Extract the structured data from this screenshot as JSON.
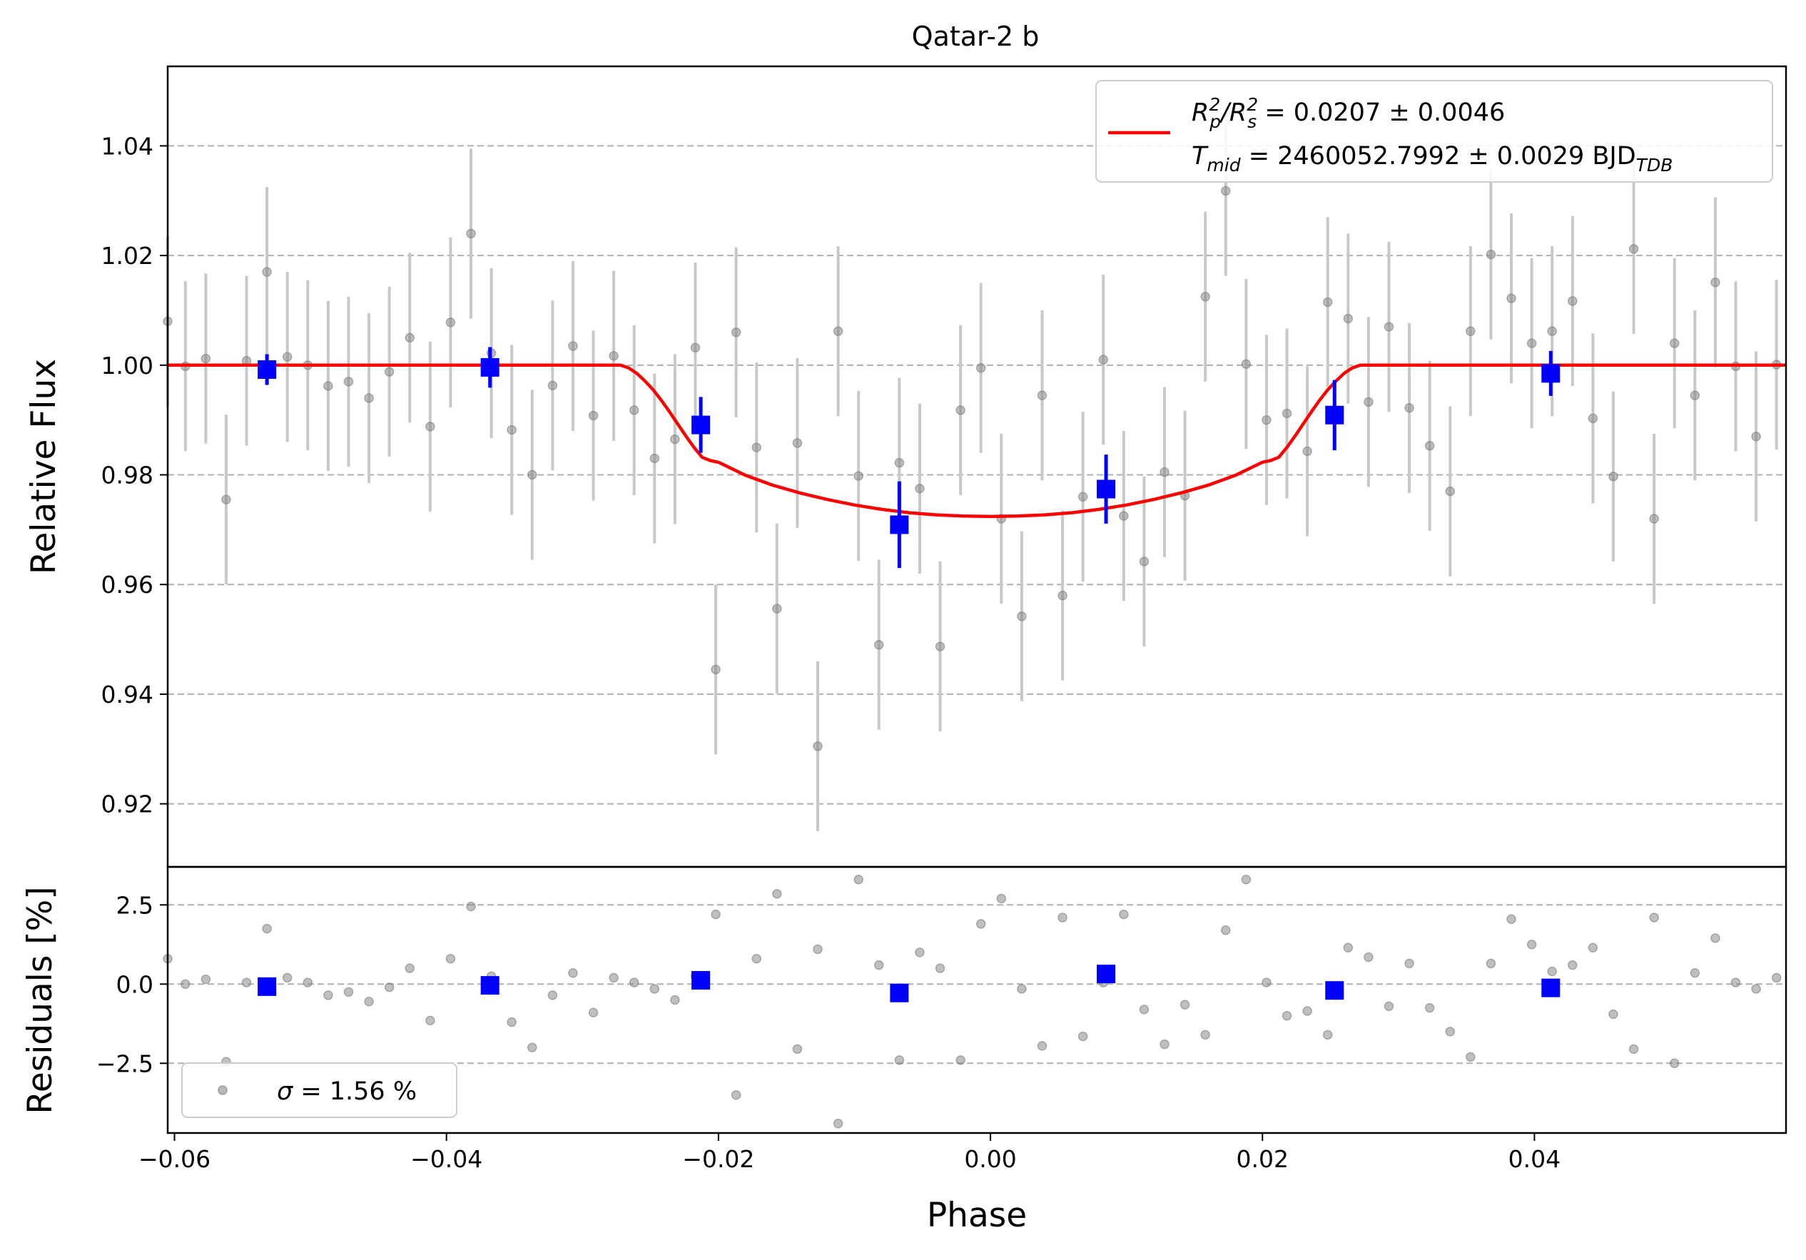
{
  "chart_data": {
    "type": "scatter",
    "title": "Qatar-2 b",
    "colors": {
      "raw": "#808080",
      "raw_errorbar": "#c8c8c8",
      "binned": "#0000ff",
      "model": "#ff0000",
      "grid": "#b0b0b0"
    },
    "x_axis": {
      "label": "Phase",
      "lim": [
        -0.0605,
        0.0585
      ],
      "ticks": [
        -0.06,
        -0.04,
        -0.02,
        0.0,
        0.02,
        0.04
      ],
      "tick_labels": [
        "−0.06",
        "−0.04",
        "−0.02",
        "0.00",
        "0.02",
        "0.04"
      ]
    },
    "main_panel": {
      "ylabel": "Relative Flux",
      "ylim": [
        0.9085,
        1.0545
      ],
      "yticks": [
        0.92,
        0.94,
        0.96,
        0.98,
        1.0,
        1.02,
        1.04
      ],
      "ytick_labels": [
        "0.92",
        "0.94",
        "0.96",
        "0.98",
        "1.00",
        "1.02",
        "1.04"
      ],
      "grid": "horizontal-dashed",
      "legend": {
        "placement": "top-right",
        "line1": {
          "main": "R",
          "sub1": "p",
          "sup1": "2",
          "mid": "/R",
          "sub2": "s",
          "sup2": "2",
          "rest": " = 0.0207 ± 0.0046"
        },
        "line2": {
          "main": "T",
          "sub1": "mid",
          "rest": " = 2460052.7992 ± 0.0029 BJD",
          "sub2": "TDB"
        }
      },
      "model_curve": {
        "x": [
          -0.0605,
          -0.0272,
          -0.0266,
          -0.026,
          -0.0254,
          -0.0248,
          -0.0242,
          -0.0236,
          -0.023,
          -0.0224,
          -0.0218,
          -0.0212,
          -0.0206,
          -0.02,
          -0.018,
          -0.016,
          -0.014,
          -0.012,
          -0.01,
          -0.008,
          -0.006,
          -0.004,
          -0.002,
          0.0,
          0.002,
          0.004,
          0.006,
          0.008,
          0.01,
          0.012,
          0.014,
          0.016,
          0.018,
          0.02,
          0.0206,
          0.0212,
          0.0218,
          0.0224,
          0.023,
          0.0236,
          0.0242,
          0.0248,
          0.0254,
          0.026,
          0.0266,
          0.0272,
          0.0585
        ],
        "y": [
          1.0,
          1.0,
          0.9995,
          0.9985,
          0.9971,
          0.9955,
          0.9936,
          0.9915,
          0.9893,
          0.9871,
          0.985,
          0.9832,
          0.9826,
          0.9823,
          0.9799,
          0.9781,
          0.9767,
          0.9755,
          0.9745,
          0.9737,
          0.9731,
          0.9727,
          0.9725,
          0.9724,
          0.9725,
          0.9727,
          0.9731,
          0.9737,
          0.9745,
          0.9755,
          0.9767,
          0.9781,
          0.9799,
          0.9823,
          0.9826,
          0.9832,
          0.985,
          0.9871,
          0.9893,
          0.9915,
          0.9936,
          0.9955,
          0.9971,
          0.9985,
          0.9995,
          1.0,
          1.0
        ]
      },
      "raw_points": {
        "x": [
          -0.0605,
          -0.0592,
          -0.0577,
          -0.0562,
          -0.0547,
          -0.0532,
          -0.0517,
          -0.0502,
          -0.0487,
          -0.0472,
          -0.0457,
          -0.0442,
          -0.0427,
          -0.0412,
          -0.0397,
          -0.0382,
          -0.0367,
          -0.0352,
          -0.0337,
          -0.0322,
          -0.0307,
          -0.0292,
          -0.0277,
          -0.0262,
          -0.0247,
          -0.0232,
          -0.0217,
          -0.0202,
          -0.0187,
          -0.0172,
          -0.0157,
          -0.0142,
          -0.0127,
          -0.0112,
          -0.0097,
          -0.0082,
          -0.0067,
          -0.0052,
          -0.0037,
          -0.0022,
          -0.0007,
          0.0008,
          0.0023,
          0.0038,
          0.0053,
          0.0068,
          0.0083,
          0.0098,
          0.0113,
          0.0128,
          0.0143,
          0.0158,
          0.0173,
          0.0188,
          0.0203,
          0.0218,
          0.0233,
          0.0248,
          0.0263,
          0.0278,
          0.0293,
          0.0308,
          0.0323,
          0.0338,
          0.0353,
          0.0368,
          0.0383,
          0.0398,
          0.0413,
          0.0428,
          0.0443,
          0.0458,
          0.0473,
          0.0488,
          0.0503,
          0.0518,
          0.0533,
          0.0548,
          0.0563,
          0.0578
        ],
        "y": [
          1.008,
          0.9998,
          1.0012,
          0.9755,
          1.0008,
          1.017,
          1.0015,
          1.0,
          0.9962,
          0.997,
          0.994,
          0.9988,
          1.005,
          0.9888,
          1.0078,
          1.024,
          1.0022,
          0.9882,
          0.98,
          0.9963,
          1.0035,
          0.9908,
          1.0017,
          0.9918,
          0.983,
          0.9865,
          1.0032,
          0.9445,
          1.006,
          0.985,
          0.9556,
          0.9858,
          0.9305,
          1.0062,
          0.9798,
          0.949,
          0.9822,
          0.9775,
          0.9487,
          0.9918,
          0.9995,
          0.972,
          0.9542,
          0.9945,
          0.958,
          0.976,
          1.001,
          0.9725,
          0.9642,
          0.9805,
          0.9762,
          1.0125,
          1.0318,
          1.0002,
          0.99,
          0.9912,
          0.9843,
          1.0115,
          1.0085,
          0.9933,
          1.007,
          0.9922,
          0.9853,
          0.977,
          1.0062,
          1.0202,
          1.0122,
          1.004,
          1.0062,
          1.0117,
          0.9903,
          0.9797,
          1.0212,
          0.972,
          1.004,
          0.9945,
          1.0151,
          0.9998,
          0.987,
          1.0001
        ],
        "err": 0.0155
      },
      "binned_points": {
        "x": [
          -0.0532,
          -0.0368,
          -0.0213,
          -0.0067,
          0.0085,
          0.0253,
          0.0412
        ],
        "y": [
          0.9992,
          0.9996,
          0.9891,
          0.9709,
          0.9774,
          0.9909,
          0.9985
        ],
        "err": [
          0.0028,
          0.0037,
          0.0051,
          0.0079,
          0.0063,
          0.0064,
          0.0041
        ]
      }
    },
    "residual_panel": {
      "ylabel": "Residuals [%]",
      "ylim": [
        -4.7,
        3.7
      ],
      "yticks": [
        -2.5,
        0.0,
        2.5
      ],
      "ytick_labels": [
        "−2.5",
        "0.0",
        "2.5"
      ],
      "grid": "horizontal-dashed",
      "legend": {
        "placement": "bottom-left",
        "sigma_symbol": "σ",
        "text": " = 1.56 %"
      },
      "raw_points": {
        "x": [
          -0.0605,
          -0.0592,
          -0.0577,
          -0.0562,
          -0.0547,
          -0.0532,
          -0.0517,
          -0.0502,
          -0.0487,
          -0.0472,
          -0.0457,
          -0.0442,
          -0.0427,
          -0.0412,
          -0.0397,
          -0.0382,
          -0.0367,
          -0.0352,
          -0.0337,
          -0.0322,
          -0.0307,
          -0.0292,
          -0.0277,
          -0.0262,
          -0.0247,
          -0.0232,
          -0.0217,
          -0.0202,
          -0.0187,
          -0.0172,
          -0.0157,
          -0.0142,
          -0.0127,
          -0.0112,
          -0.0097,
          -0.0082,
          -0.0067,
          -0.0052,
          -0.0037,
          -0.0022,
          -0.0007,
          0.0008,
          0.0023,
          0.0038,
          0.0053,
          0.0068,
          0.0083,
          0.0098,
          0.0113,
          0.0128,
          0.0143,
          0.0158,
          0.0173,
          0.0188,
          0.0203,
          0.0218,
          0.0233,
          0.0248,
          0.0263,
          0.0278,
          0.0293,
          0.0308,
          0.0323,
          0.0338,
          0.0353,
          0.0368,
          0.0383,
          0.0398,
          0.0413,
          0.0428,
          0.0443,
          0.0458,
          0.0473,
          0.0488,
          0.0503,
          0.0518,
          0.0533,
          0.0548,
          0.0563,
          0.0578
        ],
        "y": [
          0.8,
          0.0,
          0.15,
          -2.45,
          0.05,
          1.75,
          0.2,
          0.05,
          -0.35,
          -0.25,
          -0.55,
          -0.1,
          0.5,
          -1.15,
          0.8,
          2.45,
          0.25,
          -1.2,
          -2.0,
          -0.35,
          0.35,
          -0.9,
          0.2,
          0.05,
          -0.15,
          -0.5,
          0.25,
          2.2,
          -3.5,
          0.8,
          2.85,
          -2.05,
          1.1,
          -4.4,
          3.3,
          0.6,
          -2.4,
          1.0,
          0.5,
          -2.4,
          1.9,
          2.7,
          -0.15,
          -1.95,
          2.1,
          -1.65,
          0.05,
          2.2,
          -0.8,
          -1.9,
          -0.65,
          -1.6,
          1.7,
          3.3,
          0.05,
          -1.0,
          -0.85,
          -1.6,
          1.15,
          0.85,
          -0.7,
          0.65,
          -0.75,
          -1.5,
          -2.3,
          0.65,
          2.05,
          1.25,
          0.4,
          0.6,
          1.15,
          -0.95,
          -2.05,
          2.1,
          -2.5,
          0.35,
          1.45,
          0.05,
          -0.15,
          0.2
        ]
      },
      "binned_points": {
        "x": [
          -0.0532,
          -0.0368,
          -0.0213,
          -0.0067,
          0.0085,
          0.0253,
          0.0412
        ],
        "y": [
          -0.08,
          -0.04,
          0.12,
          -0.28,
          0.32,
          -0.2,
          -0.12
        ]
      }
    }
  }
}
